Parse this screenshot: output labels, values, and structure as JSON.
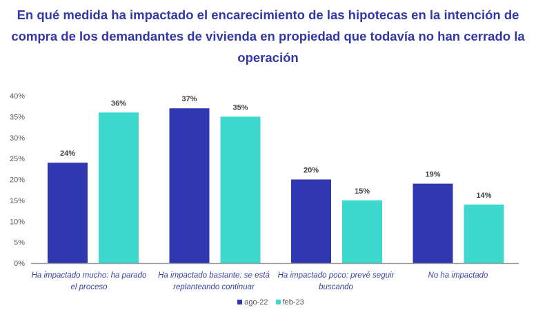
{
  "chart_data": {
    "type": "bar",
    "title": "En qué medida ha impactado el encarecimiento de las hipotecas en la intención de compra de los demandantes de vivienda en propiedad que todavía no han cerrado la operación",
    "categories": [
      "Ha impactado mucho: ha parado el proceso",
      "Ha impactado bastante: se está replanteando continuar",
      "Ha impactado poco: prevé seguir buscando",
      "No ha impactado"
    ],
    "series": [
      {
        "name": "ago-22",
        "values": [
          24,
          37,
          20,
          19
        ],
        "color": "#2f38b0"
      },
      {
        "name": "feb-23",
        "values": [
          36,
          35,
          15,
          14
        ],
        "color": "#3dd9cf"
      }
    ],
    "data_labels": [
      [
        "24%",
        "37%",
        "20%",
        "19%"
      ],
      [
        "36%",
        "35%",
        "15%",
        "14%"
      ]
    ],
    "yticks": [
      "0%",
      "5%",
      "10%",
      "15%",
      "20%",
      "25%",
      "30%",
      "35%",
      "40%"
    ],
    "ylim": [
      0,
      40
    ],
    "grid": false,
    "legend": "bottom"
  }
}
